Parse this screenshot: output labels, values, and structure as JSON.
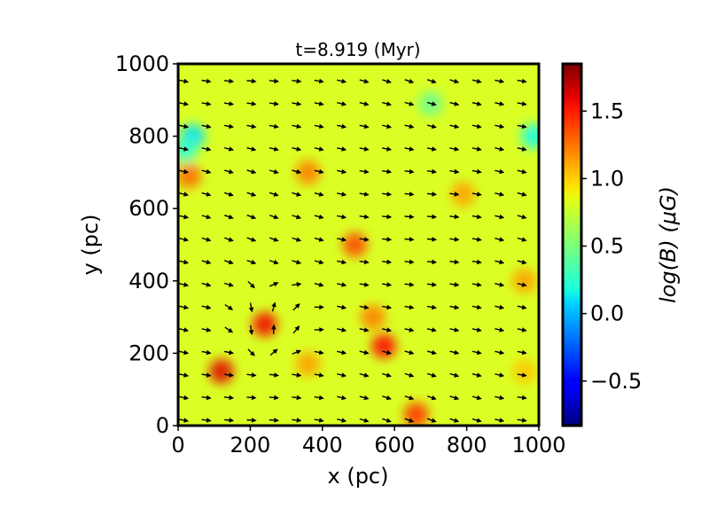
{
  "chart_data": {
    "type": "heatmap",
    "title": "t=8.919 (Myr)",
    "xlabel": "x (pc)",
    "ylabel": "y (pc)",
    "xlim": [
      0,
      1000
    ],
    "ylim": [
      0,
      1000
    ],
    "xticks": [
      0,
      200,
      400,
      600,
      800,
      1000
    ],
    "yticks": [
      0,
      200,
      400,
      600,
      800,
      1000
    ],
    "colorbar": {
      "label": "log(B) (μG)",
      "range": [
        -0.83,
        1.85
      ],
      "ticks": [
        -0.5,
        0.0,
        0.5,
        1.0,
        1.5
      ],
      "tick_labels": [
        "−0.5",
        "0.0",
        "0.5",
        "1.0",
        "1.5"
      ],
      "colormap": "jet"
    },
    "background_level": 0.75,
    "features": [
      {
        "desc": "low field region",
        "x": 40,
        "y": 800,
        "level": 0.1
      },
      {
        "desc": "low field region",
        "x": 985,
        "y": 800,
        "level": 0.2
      },
      {
        "desc": "low field region",
        "x": 20,
        "y": 760,
        "level": 0.3
      },
      {
        "desc": "weak field region",
        "x": 700,
        "y": 890,
        "level": 0.45
      },
      {
        "desc": "high field knot",
        "x": 30,
        "y": 690,
        "level": 1.25
      },
      {
        "desc": "high field knot",
        "x": 360,
        "y": 700,
        "level": 1.2
      },
      {
        "desc": "high field knot",
        "x": 490,
        "y": 500,
        "level": 1.35
      },
      {
        "desc": "high field knot",
        "x": 540,
        "y": 300,
        "level": 1.2
      },
      {
        "desc": "high field knot",
        "x": 570,
        "y": 220,
        "level": 1.5
      },
      {
        "desc": "high field knot",
        "x": 790,
        "y": 640,
        "level": 1.1
      },
      {
        "desc": "high field knot",
        "x": 960,
        "y": 400,
        "level": 1.1
      },
      {
        "desc": "high field knot",
        "x": 960,
        "y": 150,
        "level": 1.0
      },
      {
        "desc": "high field knot",
        "x": 660,
        "y": 30,
        "level": 1.4
      },
      {
        "desc": "turbulent high field region",
        "x": 120,
        "y": 150,
        "level": 1.6
      },
      {
        "desc": "turbulent high field region",
        "x": 240,
        "y": 280,
        "level": 1.55
      },
      {
        "desc": "high field knot",
        "x": 360,
        "y": 170,
        "level": 1.1
      }
    ],
    "vector_field": {
      "grid_step": 62.5,
      "dominant_direction_deg": -12,
      "note": "arrows mostly point to the right, slightly downward; swirl near (250,300)"
    }
  }
}
